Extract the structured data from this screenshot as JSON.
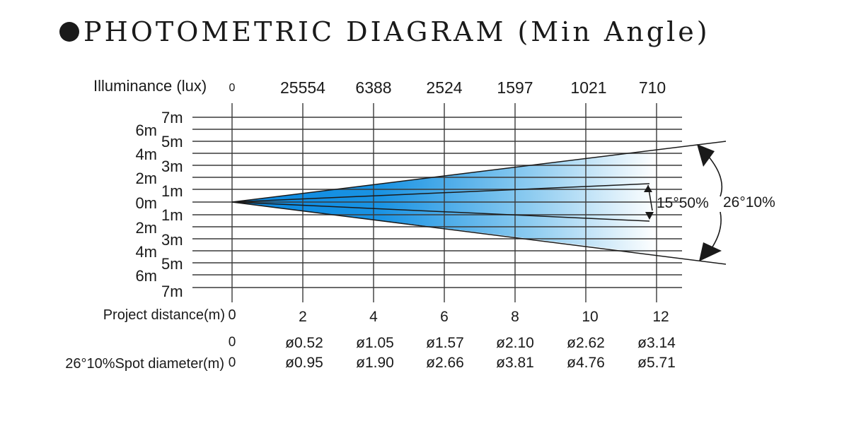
{
  "title": "PHOTOMETRIC DIAGRAM (Min Angle)",
  "illuminance": {
    "label": "Illuminance (lux)",
    "values": [
      "0",
      "25554",
      "6388",
      "2524",
      "1597",
      "1021",
      "710"
    ]
  },
  "distance": {
    "label": "Project distance(m)",
    "ticks": [
      "0",
      "2",
      "4",
      "6",
      "8",
      "10",
      "12"
    ]
  },
  "left_scale_outer": [
    "6m",
    "4m",
    "2m",
    "0m",
    "2m",
    "4m",
    "6m"
  ],
  "left_scale_inner": [
    "7m",
    "5m",
    "3m",
    "1m",
    "1m",
    "3m",
    "5m",
    "7m"
  ],
  "beam_angle_inner": "15°50%",
  "beam_angle_outer": "26°10%",
  "diameter_rows": [
    {
      "label": "",
      "values": [
        "0",
        "ø0.52",
        "ø1.05",
        "ø1.57",
        "ø2.10",
        "ø2.62",
        "ø3.14"
      ]
    },
    {
      "label": "26°10%Spot diameter(m)",
      "values": [
        "0",
        "ø0.95",
        "ø1.90",
        "ø2.66",
        "ø3.81",
        "ø4.76",
        "ø5.71"
      ]
    }
  ],
  "colors": {
    "beam_core": "#0a88e0",
    "beam_mid": "#6fbdee",
    "beam_edge": "#ffffff",
    "bullet": "#1a1a1a"
  }
}
